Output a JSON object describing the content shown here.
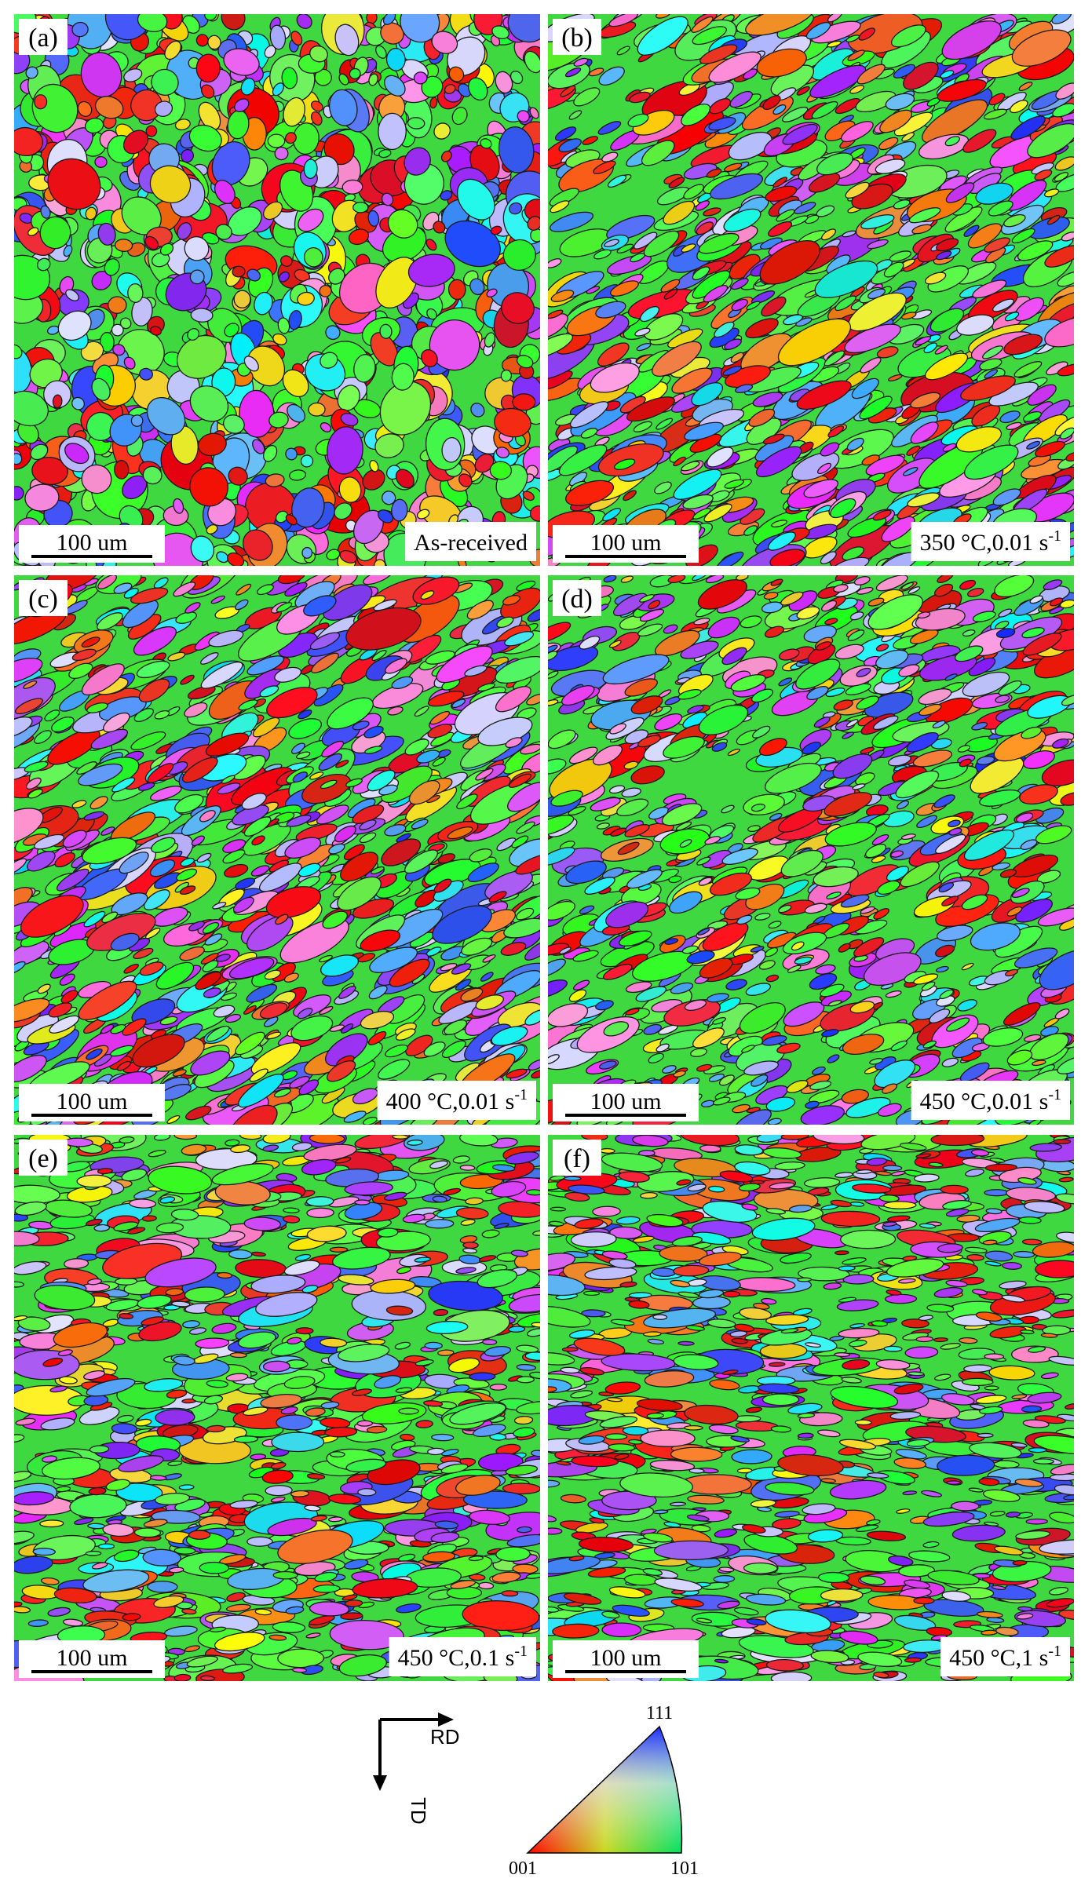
{
  "panels": [
    {
      "label": "(a)",
      "scale_bar": "100 um",
      "condition": {
        "text": "As-received"
      }
    },
    {
      "label": "(b)",
      "scale_bar": "100 um",
      "condition": {
        "text": "350 °C,0.01 s",
        "superscript": "-1"
      }
    },
    {
      "label": "(c)",
      "scale_bar": "100 um",
      "condition": {
        "text": "400 °C,0.01 s",
        "superscript": "-1"
      }
    },
    {
      "label": "(d)",
      "scale_bar": "100 um",
      "condition": {
        "text": "450 °C,0.01 s",
        "superscript": "-1"
      }
    },
    {
      "label": "(e)",
      "scale_bar": "100 um",
      "condition": {
        "text": "450 °C,0.1 s",
        "superscript": "-1"
      }
    },
    {
      "label": "(f)",
      "scale_bar": "100 um",
      "condition": {
        "text": "450 °C,1 s",
        "superscript": "-1"
      }
    }
  ],
  "legend": {
    "axes": {
      "x": "RD",
      "y": "TD"
    },
    "ipf": {
      "top": "111",
      "left": "001",
      "right": "101"
    }
  }
}
